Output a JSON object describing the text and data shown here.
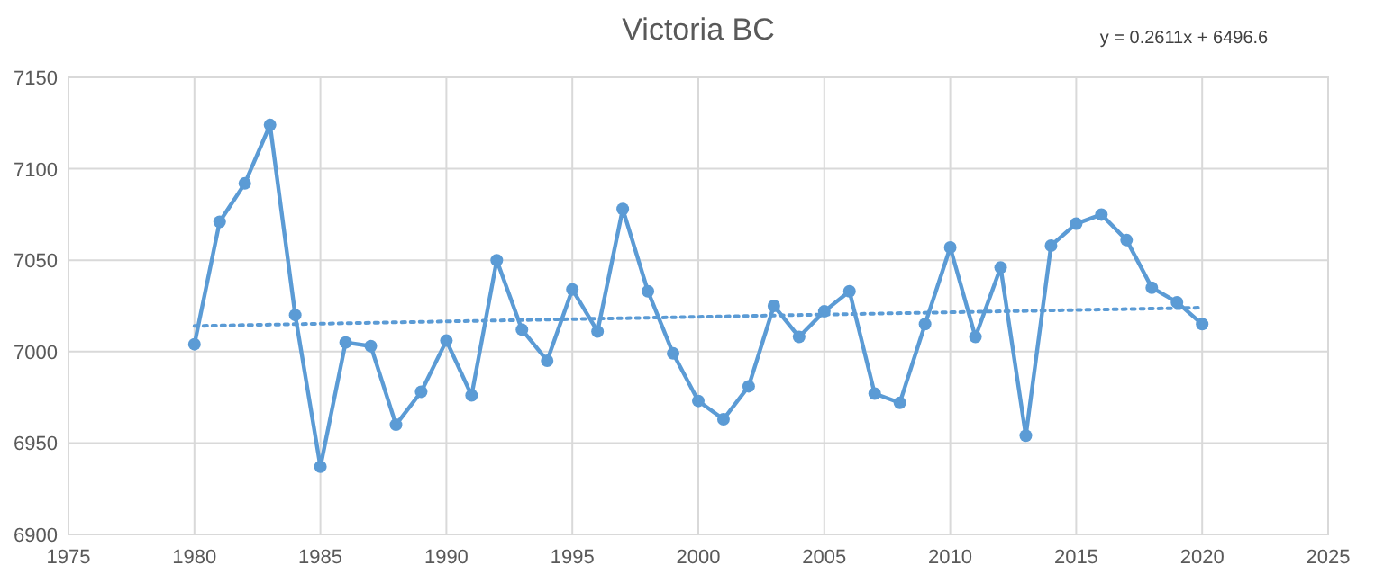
{
  "chart_data": {
    "type": "line",
    "title": "Victoria BC",
    "x": [
      1980,
      1981,
      1982,
      1983,
      1984,
      1985,
      1986,
      1987,
      1988,
      1989,
      1990,
      1991,
      1992,
      1993,
      1994,
      1995,
      1996,
      1997,
      1998,
      1999,
      2000,
      2001,
      2002,
      2003,
      2004,
      2005,
      2006,
      2007,
      2008,
      2009,
      2010,
      2011,
      2012,
      2013,
      2014,
      2015,
      2016,
      2017,
      2018,
      2019,
      2020
    ],
    "series": [
      {
        "color": "#5b9bd5",
        "marker": "circle",
        "line_style": "solid",
        "values": [
          7004,
          7071,
          7092,
          7124,
          7020,
          6937,
          7005,
          7003,
          6960,
          6978,
          7006,
          6976,
          7050,
          7012,
          6995,
          7034,
          7011,
          7078,
          7033,
          6999,
          6973,
          6963,
          6981,
          7025,
          7008,
          7022,
          7033,
          6977,
          6972,
          7015,
          7057,
          7008,
          7046,
          6954,
          7058,
          7070,
          7075,
          7061,
          7035,
          7027,
          7015
        ]
      },
      {
        "type": "line",
        "color": "#5b9bd5",
        "marker": "none",
        "line_style": "dotted",
        "x": [
          1980,
          2020
        ],
        "values": [
          7014,
          7024
        ]
      }
    ],
    "xlim": [
      1975,
      2025
    ],
    "xticks": [
      1975,
      1980,
      1985,
      1990,
      1995,
      2000,
      2005,
      2010,
      2015,
      2020,
      2025
    ],
    "ylim": [
      6900,
      7150
    ],
    "yticks": [
      6900,
      6950,
      7000,
      7050,
      7100,
      7150
    ],
    "grid": true,
    "annotations": [
      "y = 0.2611x + 6496.6"
    ]
  }
}
